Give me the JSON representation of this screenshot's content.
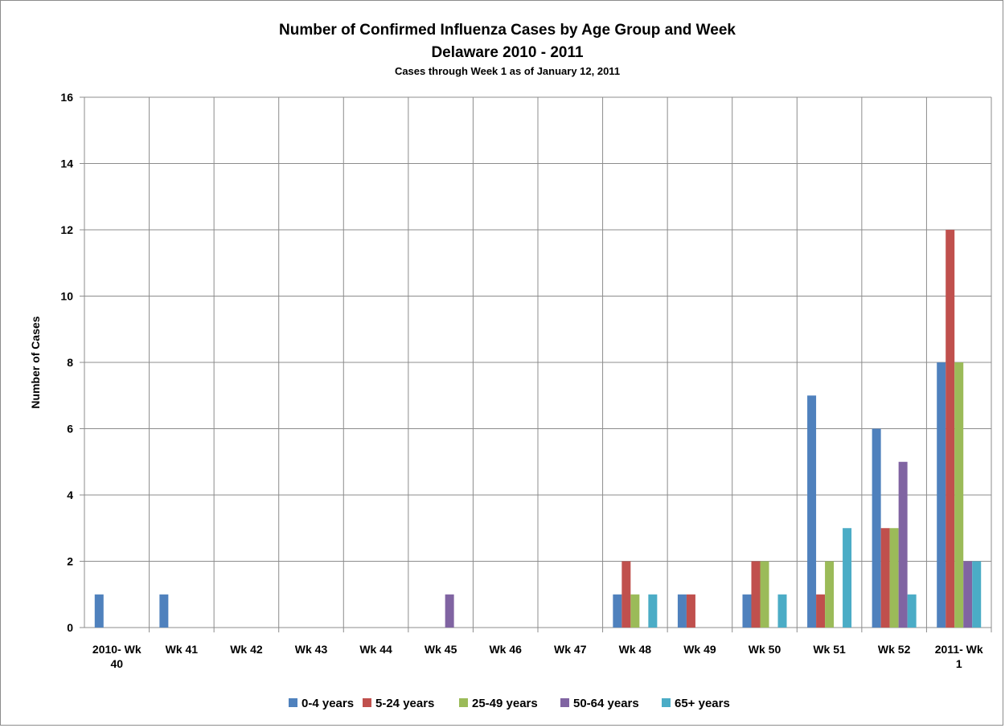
{
  "chart_data": {
    "type": "bar",
    "title": "Number of Confirmed Influenza Cases by Age Group and Week",
    "title_line2": "Delaware 2010 - 2011",
    "subtitle": "Cases through Week 1 as of January 12, 2011",
    "xlabel": "",
    "ylabel": "Number of Cases",
    "ylim": [
      0,
      16
    ],
    "yticks": [
      "0",
      "2",
      "4",
      "6",
      "8",
      "10",
      "12",
      "14",
      "16"
    ],
    "grid": true,
    "legend_position": "bottom",
    "categories": [
      [
        "2010- Wk",
        "40"
      ],
      [
        "Wk 41"
      ],
      [
        "Wk 42"
      ],
      [
        "Wk 43"
      ],
      [
        "Wk 44"
      ],
      [
        "Wk 45"
      ],
      [
        "Wk 46"
      ],
      [
        "Wk 47"
      ],
      [
        "Wk 48"
      ],
      [
        "Wk 49"
      ],
      [
        "Wk 50"
      ],
      [
        "Wk 51"
      ],
      [
        "Wk 52"
      ],
      [
        "2011- Wk",
        "1"
      ]
    ],
    "series": [
      {
        "name": "0-4 years",
        "color": "#4f81bd",
        "values": [
          1,
          1,
          0,
          0,
          0,
          0,
          0,
          0,
          1,
          1,
          1,
          7,
          6,
          8
        ]
      },
      {
        "name": "5-24 years",
        "color": "#c0504d",
        "values": [
          0,
          0,
          0,
          0,
          0,
          0,
          0,
          0,
          2,
          1,
          2,
          1,
          3,
          12
        ]
      },
      {
        "name": "25-49 years",
        "color": "#9bbb59",
        "values": [
          0,
          0,
          0,
          0,
          0,
          0,
          0,
          0,
          1,
          0,
          2,
          2,
          3,
          8
        ]
      },
      {
        "name": "50-64 years",
        "color": "#8064a2",
        "values": [
          0,
          0,
          0,
          0,
          0,
          1,
          0,
          0,
          0,
          0,
          0,
          0,
          5,
          2
        ]
      },
      {
        "name": "65+ years",
        "color": "#4bacc6",
        "values": [
          0,
          0,
          0,
          0,
          0,
          0,
          0,
          0,
          1,
          0,
          1,
          3,
          1,
          2
        ]
      }
    ]
  }
}
